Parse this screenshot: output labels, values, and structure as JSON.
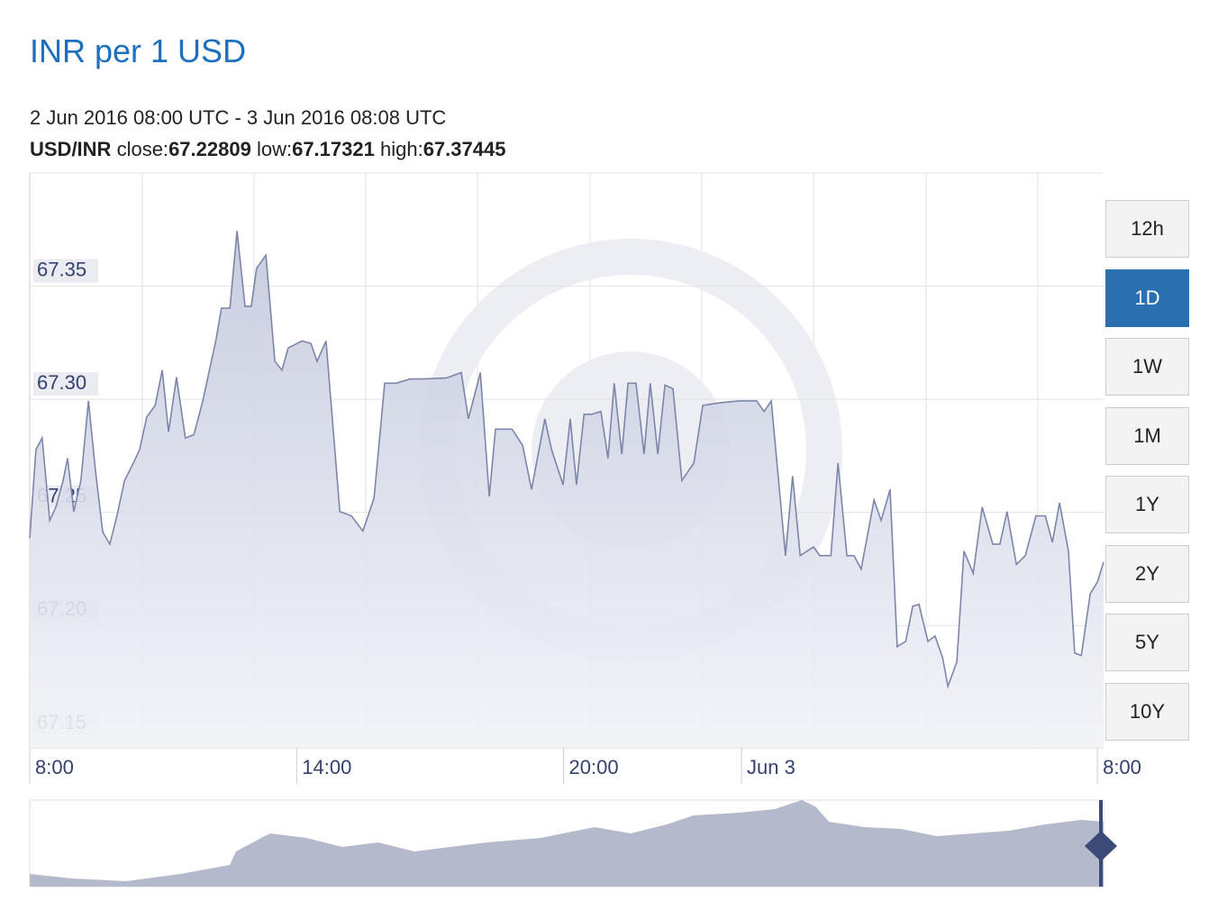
{
  "chart_data": {
    "type": "area",
    "title": "INR per 1 USD",
    "subtitle": "2 Jun 2016 08:00 UTC - 3 Jun 2016 08:08 UTC",
    "stats": {
      "pair": "USD/INR",
      "close_label": "close:",
      "close": 67.22809,
      "low_label": "low:",
      "low": 67.17321,
      "high_label": "high:",
      "high": 67.37445
    },
    "color": "#7d86aa",
    "fill": "#c3c8dc",
    "grid": true,
    "xlim": [
      8,
      32.14
    ],
    "xticks": [
      {
        "value": 8,
        "label": "8:00"
      },
      {
        "value": 14,
        "label": "14:00"
      },
      {
        "value": 20,
        "label": "20:00"
      },
      {
        "value": 24,
        "label": "Jun 3"
      },
      {
        "value": 32,
        "label": "8:00"
      }
    ],
    "ylim": [
      67.146,
      67.4
    ],
    "yticks": [
      {
        "value": 67.15,
        "label": "67.15"
      },
      {
        "value": 67.2,
        "label": "67.20"
      },
      {
        "value": 67.25,
        "label": "67.25"
      },
      {
        "value": 67.3,
        "label": "67.30"
      },
      {
        "value": 67.35,
        "label": "67.35"
      }
    ],
    "x": [
      8.0,
      8.14,
      8.28,
      8.45,
      8.59,
      8.75,
      8.85,
      8.99,
      9.15,
      9.32,
      9.48,
      9.64,
      9.8,
      9.96,
      10.13,
      10.33,
      10.47,
      10.63,
      10.82,
      10.98,
      11.12,
      11.3,
      11.5,
      11.69,
      11.89,
      12.19,
      12.31,
      12.5,
      12.66,
      12.84,
      12.98,
      13.1,
      13.31,
      13.51,
      13.67,
      13.81,
      14.12,
      14.32,
      14.46,
      14.66,
      14.97,
      15.23,
      15.49,
      15.74,
      15.98,
      16.24,
      16.55,
      16.85,
      17.36,
      17.7,
      17.86,
      18.13,
      18.33,
      18.47,
      18.84,
      19.08,
      19.28,
      19.58,
      19.73,
      19.99,
      20.15,
      20.29,
      20.46,
      20.64,
      20.84,
      21.0,
      21.14,
      21.31,
      21.45,
      21.63,
      21.81,
      21.95,
      22.12,
      22.28,
      22.46,
      22.66,
      22.93,
      23.13,
      23.53,
      23.94,
      24.34,
      24.51,
      24.67,
      24.99,
      25.15,
      25.32,
      25.62,
      25.76,
      26.01,
      26.17,
      26.37,
      26.53,
      26.69,
      26.98,
      27.14,
      27.34,
      27.5,
      27.69,
      27.85,
      27.99,
      28.19,
      28.35,
      28.52,
      28.64,
      28.84,
      29.0,
      29.21,
      29.41,
      29.65,
      29.81,
      29.97,
      30.18,
      30.38,
      30.62,
      30.83,
      30.99,
      31.15,
      31.35,
      31.49,
      31.64,
      31.84,
      32.0,
      32.14
    ],
    "values": [
      67.2387,
      67.2778,
      67.2829,
      67.2465,
      67.2524,
      67.2641,
      67.2739,
      67.2504,
      67.2641,
      67.2993,
      67.268,
      67.2414,
      67.236,
      67.2485,
      67.2641,
      67.2719,
      67.2778,
      67.2922,
      67.2973,
      67.3129,
      67.2856,
      67.3098,
      67.2829,
      67.2844,
      67.2993,
      67.3266,
      67.3403,
      67.3403,
      67.3744,
      67.3411,
      67.3411,
      67.3579,
      67.3637,
      67.3168,
      67.3129,
      67.3227,
      67.3258,
      67.3247,
      67.3168,
      67.3258,
      67.2504,
      67.2485,
      67.2418,
      67.2563,
      67.3071,
      67.3071,
      67.309,
      67.309,
      67.3094,
      67.3118,
      67.2914,
      67.3118,
      67.2571,
      67.2868,
      67.2868,
      67.2797,
      67.2602,
      67.2914,
      67.2778,
      67.2622,
      67.2914,
      67.2622,
      67.2934,
      67.2934,
      67.2946,
      67.2739,
      67.3071,
      67.2758,
      67.3071,
      67.3071,
      67.2758,
      67.3071,
      67.2758,
      67.3063,
      67.3047,
      67.2641,
      67.2719,
      67.2973,
      67.2985,
      67.2993,
      67.2993,
      67.2946,
      67.2993,
      67.2309,
      67.2661,
      67.2309,
      67.2348,
      67.2309,
      67.2309,
      67.2719,
      67.2309,
      67.2309,
      67.225,
      67.2555,
      67.2465,
      67.2602,
      67.1907,
      67.193,
      67.2086,
      67.2094,
      67.193,
      67.1954,
      67.186,
      67.1732,
      67.184,
      67.2329,
      67.2231,
      67.2524,
      67.236,
      67.236,
      67.2504,
      67.227,
      67.2309,
      67.2485,
      67.2485,
      67.2368,
      67.2543,
      67.2329,
      67.1879,
      67.1868,
      67.2141,
      67.2192,
      67.2281
    ],
    "range_options": [
      "12h",
      "1D",
      "1W",
      "1M",
      "1Y",
      "2Y",
      "5Y",
      "10Y"
    ],
    "selected_range": "1D"
  }
}
